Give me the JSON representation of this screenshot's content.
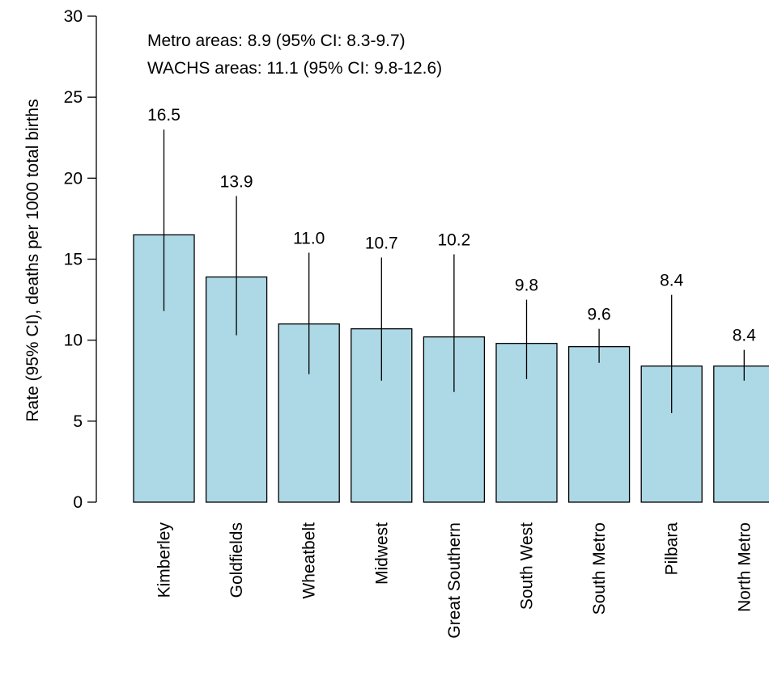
{
  "chart_data": {
    "type": "bar",
    "title": "",
    "xlabel": "",
    "ylabel": "Rate (95% CI), deaths per 1000 total births",
    "ylim": [
      0,
      30
    ],
    "yticks": [
      0,
      5,
      10,
      15,
      20,
      25,
      30
    ],
    "grid": false,
    "legend": "none",
    "bar_color": "#add8e6",
    "categories": [
      "Kimberley",
      "Goldfields",
      "Wheatbelt",
      "Midwest",
      "Great Southern",
      "South West",
      "South Metro",
      "Pilbara",
      "North Metro"
    ],
    "values": [
      16.5,
      13.9,
      11.0,
      10.7,
      10.2,
      9.8,
      9.6,
      8.4,
      8.4
    ],
    "value_labels": [
      "16.5",
      "13.9",
      "11.0",
      "10.7",
      "10.2",
      "9.8",
      "9.6",
      "8.4",
      "8.4"
    ],
    "ci_lower": [
      11.8,
      10.3,
      7.9,
      7.5,
      6.8,
      7.6,
      8.6,
      5.5,
      7.5
    ],
    "ci_upper": [
      23.0,
      18.9,
      15.4,
      15.1,
      15.3,
      12.5,
      10.7,
      12.8,
      9.4
    ],
    "annotations": [
      "Metro areas: 8.9 (95% CI: 8.3-9.7)",
      "WACHS areas: 11.1 (95% CI: 9.8-12.6)"
    ]
  }
}
